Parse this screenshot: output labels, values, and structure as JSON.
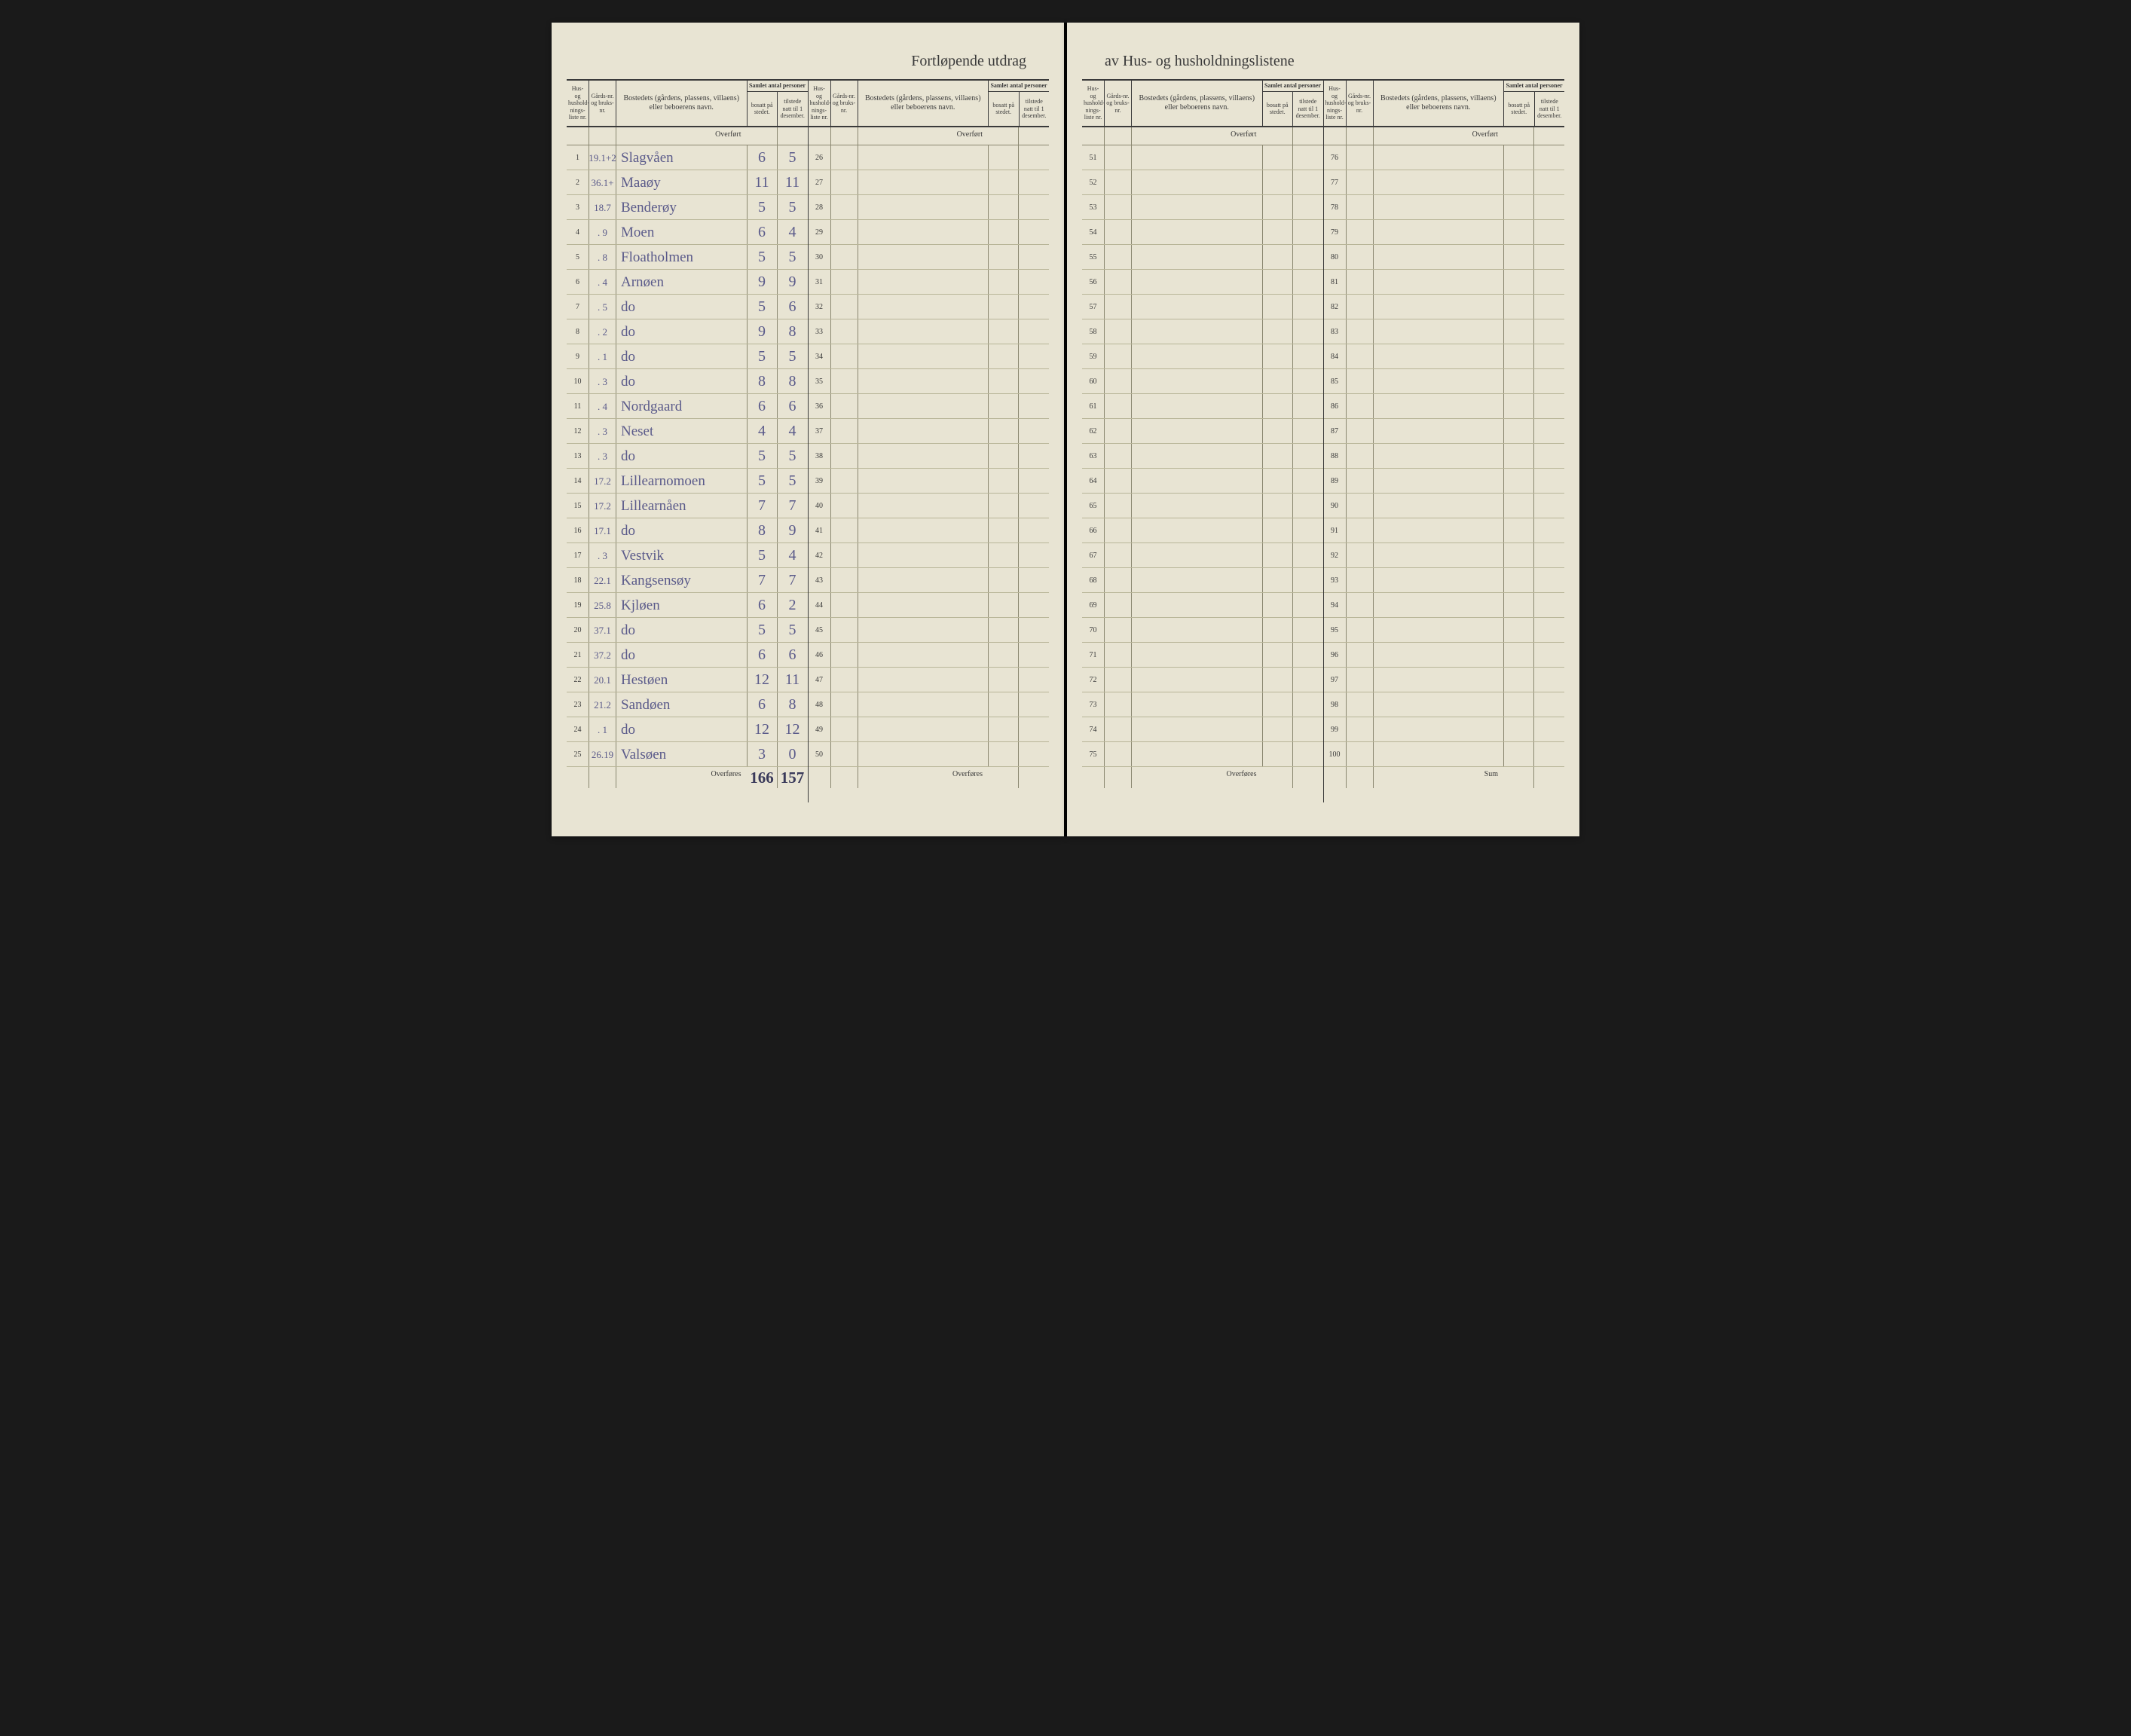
{
  "title_left": "Fortløpende utdrag",
  "title_right": "av Hus- og husholdningslistene",
  "headers": {
    "liste": "Hus- og hushold-nings-liste nr.",
    "gard": "Gårds-nr. og bruks-nr.",
    "bosted": "Bostedets (gårdens, plassens, villaens) eller beboerens navn.",
    "personer_super": "Samlet antal personer",
    "bosatt": "bosatt på stedet.",
    "tilstede": "tilstede natt til 1 desember."
  },
  "overfort_label": "Overført",
  "overfores_label": "Overføres",
  "sum_label": "Sum",
  "panel1": {
    "rows": [
      {
        "n": "1",
        "gard": "19.1+2",
        "bosted": "Slagvåen",
        "p1": "6",
        "p2": "5"
      },
      {
        "n": "2",
        "gard": "36.1+",
        "bosted": "Maaøy",
        "p1": "11",
        "p2": "11"
      },
      {
        "n": "3",
        "gard": "18.7",
        "bosted": "Benderøy",
        "p1": "5",
        "p2": "5"
      },
      {
        "n": "4",
        "gard": ". 9",
        "bosted": "Moen",
        "p1": "6",
        "p2": "4"
      },
      {
        "n": "5",
        "gard": ". 8",
        "bosted": "Floatholmen",
        "p1": "5",
        "p2": "5"
      },
      {
        "n": "6",
        "gard": ". 4",
        "bosted": "Arnøen",
        "p1": "9",
        "p2": "9"
      },
      {
        "n": "7",
        "gard": ". 5",
        "bosted": "do",
        "p1": "5",
        "p2": "6"
      },
      {
        "n": "8",
        "gard": ". 2",
        "bosted": "do",
        "p1": "9",
        "p2": "8"
      },
      {
        "n": "9",
        "gard": ". 1",
        "bosted": "do",
        "p1": "5",
        "p2": "5"
      },
      {
        "n": "10",
        "gard": ". 3",
        "bosted": "do",
        "p1": "8",
        "p2": "8"
      },
      {
        "n": "11",
        "gard": ". 4",
        "bosted": "Nordgaard",
        "p1": "6",
        "p2": "6"
      },
      {
        "n": "12",
        "gard": ". 3",
        "bosted": "Neset",
        "p1": "4",
        "p2": "4"
      },
      {
        "n": "13",
        "gard": ". 3",
        "bosted": "do",
        "p1": "5",
        "p2": "5"
      },
      {
        "n": "14",
        "gard": "17.2",
        "bosted": "Lillearnomoen",
        "p1": "5",
        "p2": "5"
      },
      {
        "n": "15",
        "gard": "17.2",
        "bosted": "Lillearnåen",
        "p1": "7",
        "p2": "7"
      },
      {
        "n": "16",
        "gard": "17.1",
        "bosted": "do",
        "p1": "8",
        "p2": "9"
      },
      {
        "n": "17",
        "gard": ". 3",
        "bosted": "Vestvik",
        "p1": "5",
        "p2": "4"
      },
      {
        "n": "18",
        "gard": "22.1",
        "bosted": "Kangsensøy",
        "p1": "7",
        "p2": "7"
      },
      {
        "n": "19",
        "gard": "25.8",
        "bosted": "Kjløen",
        "p1": "6",
        "p2": "2"
      },
      {
        "n": "20",
        "gard": "37.1",
        "bosted": "do",
        "p1": "5",
        "p2": "5"
      },
      {
        "n": "21",
        "gard": "37.2",
        "bosted": "do",
        "p1": "6",
        "p2": "6"
      },
      {
        "n": "22",
        "gard": "20.1",
        "bosted": "Hestøen",
        "p1": "12",
        "p2": "11"
      },
      {
        "n": "23",
        "gard": "21.2",
        "bosted": "Sandøen",
        "p1": "6",
        "p2": "8"
      },
      {
        "n": "24",
        "gard": ". 1",
        "bosted": "do",
        "p1": "12",
        "p2": "12"
      },
      {
        "n": "25",
        "gard": "26.19",
        "bosted": "Valsøen",
        "p1": "3",
        "p2": "0"
      }
    ],
    "total_p1": "166",
    "total_p2": "157"
  },
  "panel2": {
    "start": 26,
    "end": 50
  },
  "panel3": {
    "start": 51,
    "end": 75
  },
  "panel4": {
    "start": 76,
    "end": 100
  }
}
